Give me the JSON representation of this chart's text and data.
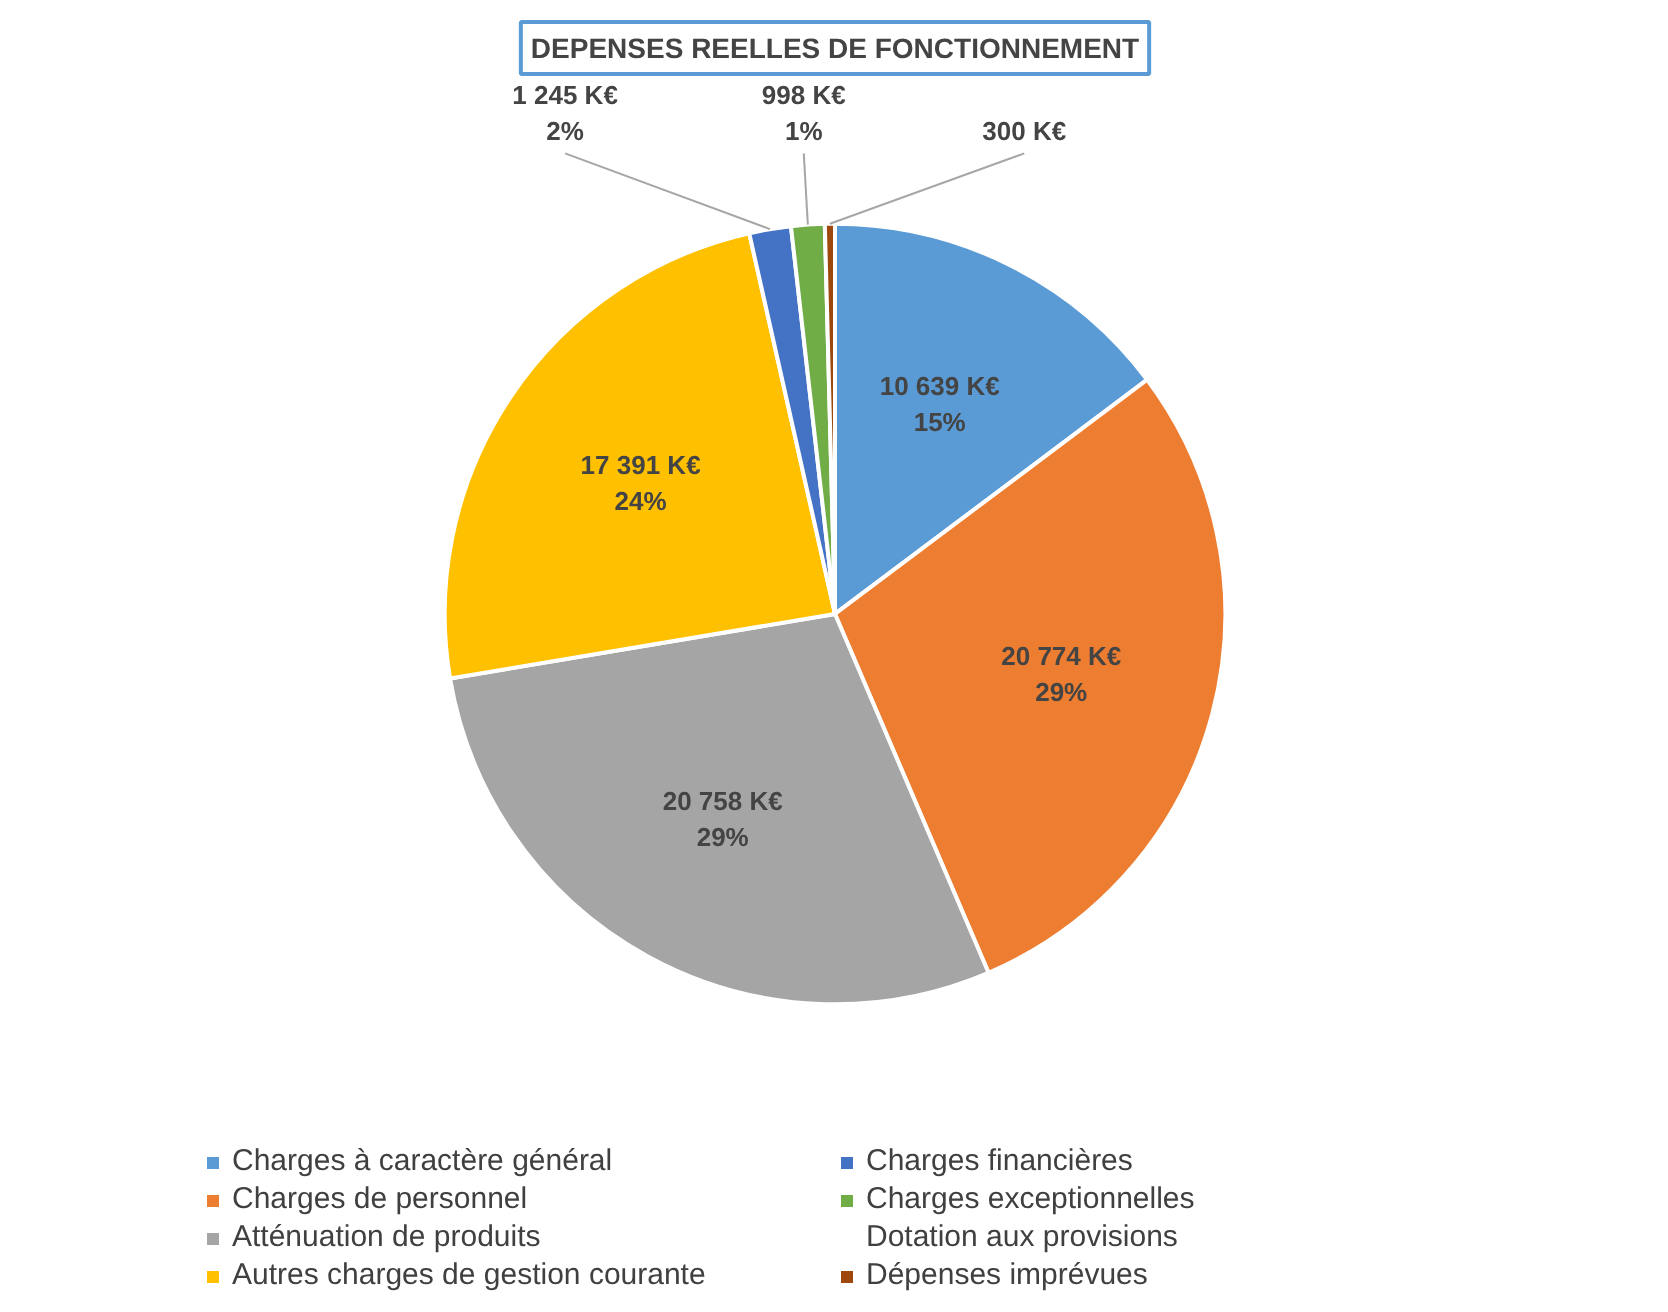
{
  "chart_data": {
    "type": "pie",
    "title": "DEPENSES REELLES DE FONCTIONNEMENT",
    "categories": [
      "Charges à caractère général",
      "Charges de personnel",
      "Atténuation de produits",
      "Autres charges de gestion courante",
      "Charges financières",
      "Charges exceptionnelles",
      "Dotation aux provisions",
      "Dépenses imprévues"
    ],
    "values": [
      10639,
      20774,
      20758,
      17391,
      1245,
      998,
      0,
      300
    ],
    "value_labels": [
      "10 639 K€\n15%",
      "20 774 K€\n29%",
      "20 758 K€\n29%",
      "17 391 K€\n24%",
      "1 245 K€\n2%",
      "998 K€\n1%",
      null,
      "300 K€"
    ],
    "colors": [
      "#5b9bd5",
      "#ed7d31",
      "#a5a5a5",
      "#ffc000",
      "#4472c4",
      "#70ad47",
      "#255e91",
      "#9e480e"
    ],
    "legend": "bottom"
  }
}
